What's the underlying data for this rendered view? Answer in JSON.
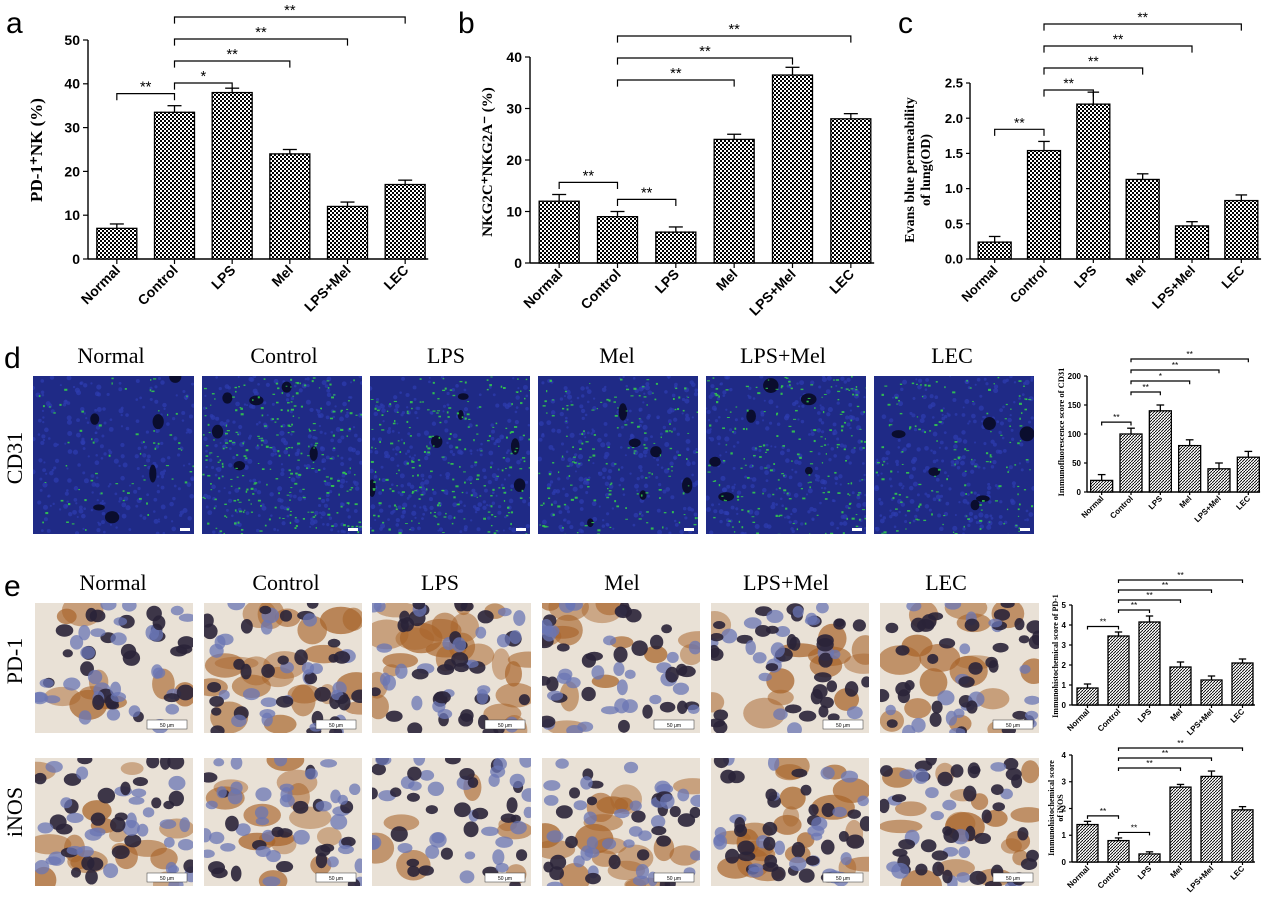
{
  "panel_letters": [
    "a",
    "b",
    "c",
    "d",
    "e"
  ],
  "groups": [
    "Normal",
    "Control",
    "LPS",
    "Mel",
    "LPS+Mel",
    "LEC"
  ],
  "row_labels": {
    "d": "CD31",
    "e1": "PD-1",
    "e2": "iNOS"
  },
  "scale_bar": "50 μm",
  "colors": {
    "fluor_bg": "#1f2a86",
    "fluor_green": "#34d24a",
    "ihc_bg": "#e9e1d6",
    "ihc_nuclei": "#2a2438",
    "ihc_brown": "#a8642a"
  },
  "micro_intensity": {
    "CD31": [
      0.2,
      0.8,
      0.7,
      0.5,
      0.6,
      0.45
    ],
    "PD-1": [
      0.35,
      0.8,
      0.9,
      0.55,
      0.45,
      0.6
    ],
    "iNOS": [
      0.6,
      0.5,
      0.25,
      0.7,
      0.8,
      0.65
    ]
  },
  "chart_data": [
    {
      "id": "a",
      "type": "bar",
      "categories": [
        "Normal",
        "Control",
        "LPS",
        "Mel",
        "LPS+Mel",
        "LEC"
      ],
      "values": [
        7,
        33.5,
        38,
        24,
        12,
        17
      ],
      "errors": [
        1,
        1.5,
        1,
        1,
        1,
        1
      ],
      "ylabel": "PD-1⁺NK (%)",
      "ylim": [
        0,
        50
      ],
      "yticks": [
        "0",
        "10",
        "20",
        "30",
        "40",
        "50"
      ],
      "comparisons": [
        {
          "from": 0,
          "to": 1,
          "label": "**"
        },
        {
          "from": 1,
          "to": 2,
          "label": "*"
        },
        {
          "from": 1,
          "to": 3,
          "label": "**"
        },
        {
          "from": 1,
          "to": 4,
          "label": "**"
        },
        {
          "from": 1,
          "to": 5,
          "label": "**"
        }
      ]
    },
    {
      "id": "b",
      "type": "bar",
      "categories": [
        "Normal",
        "Control",
        "LPS",
        "Mel",
        "LPS+Mel",
        "LEC"
      ],
      "values": [
        12,
        9,
        6,
        24,
        36.5,
        28
      ],
      "errors": [
        1.3,
        1,
        1,
        1,
        1.5,
        1
      ],
      "ylabel": "NKG2C⁺NKG2A⁻ (%)",
      "ylim": [
        0,
        40
      ],
      "yticks": [
        "0",
        "10",
        "20",
        "30",
        "40"
      ],
      "comparisons": [
        {
          "from": 0,
          "to": 1,
          "label": "**"
        },
        {
          "from": 1,
          "to": 2,
          "label": "**"
        },
        {
          "from": 1,
          "to": 3,
          "label": "**"
        },
        {
          "from": 1,
          "to": 4,
          "label": "**"
        },
        {
          "from": 1,
          "to": 5,
          "label": "**"
        }
      ]
    },
    {
      "id": "c",
      "type": "bar",
      "categories": [
        "Normal",
        "Control",
        "LPS",
        "Mel",
        "LPS+Mel",
        "LEC"
      ],
      "values": [
        0.24,
        1.54,
        2.2,
        1.13,
        0.47,
        0.83
      ],
      "errors": [
        0.08,
        0.13,
        0.17,
        0.08,
        0.06,
        0.08
      ],
      "ylabel": "Evans blue permeability of lung(OD)",
      "ylim": [
        0,
        2.5
      ],
      "yticks": [
        "0.0",
        "0.5",
        "1.0",
        "1.5",
        "2.0",
        "2.5"
      ],
      "comparisons": [
        {
          "from": 0,
          "to": 1,
          "label": "**"
        },
        {
          "from": 1,
          "to": 2,
          "label": "**"
        },
        {
          "from": 1,
          "to": 3,
          "label": "**"
        },
        {
          "from": 1,
          "to": 4,
          "label": "**"
        },
        {
          "from": 1,
          "to": 5,
          "label": "**"
        }
      ]
    },
    {
      "id": "d",
      "type": "bar",
      "categories": [
        "Normal",
        "Control",
        "LPS",
        "Mel",
        "LPS+Mel",
        "LEC"
      ],
      "values": [
        20,
        100,
        140,
        80,
        40,
        60
      ],
      "errors": [
        10,
        10,
        10,
        10,
        10,
        10
      ],
      "ylabel": "Immunofluorescence score of CD31",
      "ylim": [
        0,
        200
      ],
      "yticks": [
        "0",
        "50",
        "100",
        "150",
        "200"
      ],
      "comparisons": [
        {
          "from": 0,
          "to": 1,
          "label": "**"
        },
        {
          "from": 1,
          "to": 2,
          "label": "**"
        },
        {
          "from": 1,
          "to": 3,
          "label": "*"
        },
        {
          "from": 1,
          "to": 4,
          "label": "**"
        },
        {
          "from": 1,
          "to": 5,
          "label": "**"
        }
      ]
    },
    {
      "id": "e1",
      "type": "bar",
      "categories": [
        "Normal",
        "Control",
        "LPS",
        "Mel",
        "LPS+Mel",
        "LEC"
      ],
      "values": [
        0.85,
        3.45,
        4.15,
        1.9,
        1.25,
        2.1
      ],
      "errors": [
        0.2,
        0.2,
        0.3,
        0.25,
        0.2,
        0.2
      ],
      "ylabel": "Immunohistochemical score of PD-1",
      "ylim": [
        0,
        5
      ],
      "yticks": [
        "0",
        "1",
        "2",
        "3",
        "4",
        "5"
      ],
      "comparisons": [
        {
          "from": 0,
          "to": 1,
          "label": "**"
        },
        {
          "from": 1,
          "to": 2,
          "label": "**"
        },
        {
          "from": 1,
          "to": 3,
          "label": "**"
        },
        {
          "from": 1,
          "to": 4,
          "label": "**"
        },
        {
          "from": 1,
          "to": 5,
          "label": "**"
        }
      ]
    },
    {
      "id": "e2",
      "type": "bar",
      "categories": [
        "Normal",
        "Control",
        "LPS",
        "Mel",
        "LPS+Mel",
        "LEC"
      ],
      "values": [
        1.4,
        0.8,
        0.3,
        2.8,
        3.2,
        1.95
      ],
      "errors": [
        0.12,
        0.1,
        0.08,
        0.1,
        0.2,
        0.12
      ],
      "ylabel": "Immunohistochemical score of iNOS",
      "ylim": [
        0,
        4
      ],
      "yticks": [
        "0",
        "1",
        "2",
        "3",
        "4"
      ],
      "comparisons": [
        {
          "from": 0,
          "to": 1,
          "label": "**"
        },
        {
          "from": 1,
          "to": 2,
          "label": "**"
        },
        {
          "from": 1,
          "to": 3,
          "label": "**"
        },
        {
          "from": 1,
          "to": 4,
          "label": "**"
        },
        {
          "from": 1,
          "to": 5,
          "label": "**"
        }
      ]
    }
  ]
}
